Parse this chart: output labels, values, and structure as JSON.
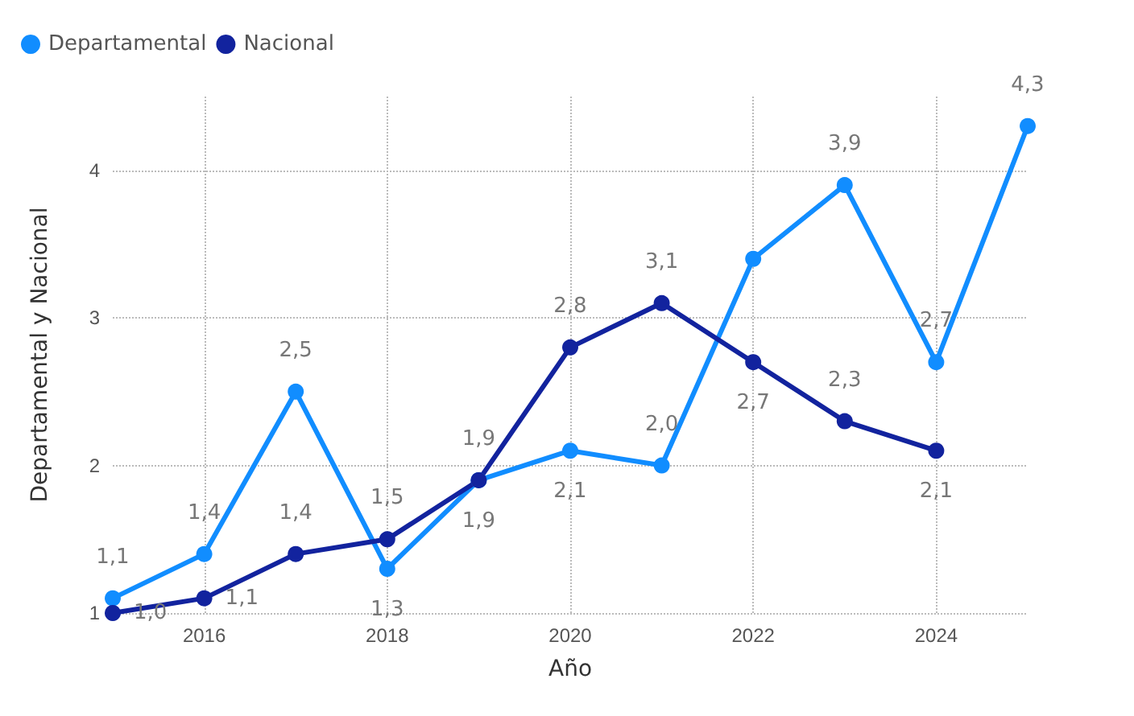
{
  "chart_data": {
    "type": "line",
    "xlabel": "Año",
    "ylabel": "Departamental y Nacional",
    "x": [
      2015,
      2016,
      2017,
      2018,
      2019,
      2020,
      2021,
      2022,
      2023,
      2024,
      2025
    ],
    "series": [
      {
        "name": "Departamental",
        "color": "#118dff",
        "values": [
          1.1,
          1.4,
          2.5,
          1.3,
          1.9,
          2.1,
          2.0,
          3.4,
          3.9,
          2.7,
          4.3
        ],
        "value_labels": [
          "1,1",
          "1,4",
          "2,5",
          "1,3",
          "1,9",
          "2,1",
          "2,0",
          null,
          "3,9",
          "2,7",
          "4,3"
        ]
      },
      {
        "name": "Nacional",
        "color": "#12239e",
        "values": [
          1.0,
          1.1,
          1.4,
          1.5,
          1.9,
          2.8,
          3.1,
          2.7,
          2.3,
          2.1,
          null
        ],
        "value_labels": [
          "1,0",
          "1,1",
          "1,4",
          "1,5",
          "1,9",
          "2,8",
          "3,1",
          "2,7",
          "2,3",
          "2,1",
          null
        ]
      }
    ],
    "xlim": [
      2015,
      2025
    ],
    "xticks": [
      2016,
      2018,
      2020,
      2022,
      2024
    ],
    "ylim": [
      1,
      4.5
    ],
    "yticks": [
      1,
      2,
      3,
      4
    ],
    "grid": true,
    "legend": "top left",
    "marker": "circle",
    "line_style": "solid"
  }
}
